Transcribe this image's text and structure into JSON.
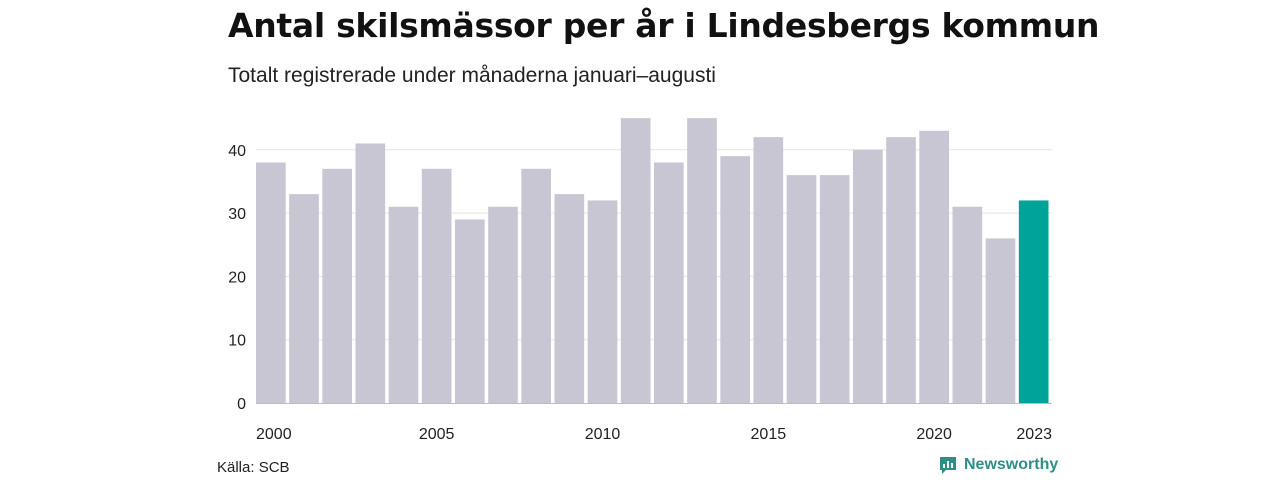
{
  "header": {
    "title": "Antal skilsmässor per år i Lindesbergs kommun",
    "subtitle": "Totalt registrerade under månaderna januari–augusti"
  },
  "footer": {
    "source": "Källa: SCB",
    "brand": "Newsworthy"
  },
  "colors": {
    "bar": "#c8c6d2",
    "highlight": "#00a398",
    "grid": "#e3e3e3",
    "brand": "#2f8f86"
  },
  "chart_data": {
    "type": "bar",
    "title": "Antal skilsmässor per år i Lindesbergs kommun",
    "subtitle": "Totalt registrerade under månaderna januari–augusti",
    "categories": [
      2000,
      2001,
      2002,
      2003,
      2004,
      2005,
      2006,
      2007,
      2008,
      2009,
      2010,
      2011,
      2012,
      2013,
      2014,
      2015,
      2016,
      2017,
      2018,
      2019,
      2020,
      2021,
      2022,
      2023
    ],
    "values": [
      38,
      33,
      37,
      41,
      31,
      37,
      29,
      31,
      37,
      33,
      32,
      45,
      38,
      45,
      39,
      42,
      36,
      36,
      40,
      42,
      43,
      31,
      26,
      32
    ],
    "highlight_category": 2023,
    "xticks": [
      2000,
      2005,
      2010,
      2015,
      2020,
      2023
    ],
    "yticks": [
      0,
      10,
      20,
      30,
      40
    ],
    "ylim": [
      0,
      45
    ],
    "xlabel": "",
    "ylabel": "",
    "grid": "horizontal",
    "legend": "none"
  }
}
